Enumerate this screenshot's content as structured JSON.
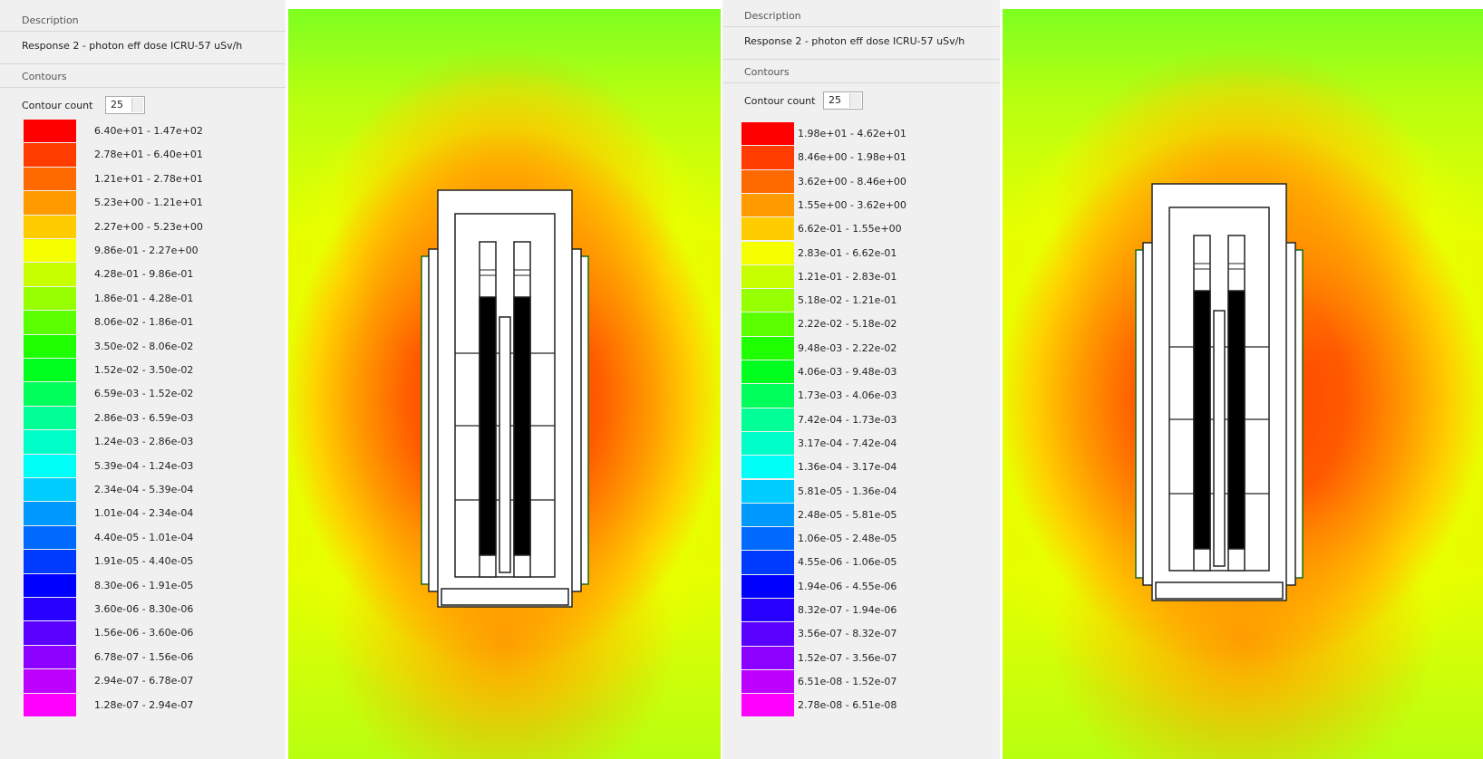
{
  "panels": [
    {
      "description_label": "Description",
      "description": "Response 2 - photon eff dose ICRU-57 uSv/h",
      "contours_label": "Contours",
      "contour_count_label": "Contour count",
      "contour_count": 25,
      "legend": [
        {
          "color": "#ff0000",
          "label": "6.40e+01 - 1.47e+02"
        },
        {
          "color": "#ff3c00",
          "label": "2.78e+01 - 6.40e+01"
        },
        {
          "color": "#ff6a00",
          "label": "1.21e+01 - 2.78e+01"
        },
        {
          "color": "#ff9a00",
          "label": "5.23e+00 - 1.21e+01"
        },
        {
          "color": "#ffcc00",
          "label": "2.27e+00 - 5.23e+00"
        },
        {
          "color": "#f6ff00",
          "label": "9.86e-01 - 2.27e+00"
        },
        {
          "color": "#c8ff00",
          "label": "4.28e-01 - 9.86e-01"
        },
        {
          "color": "#96ff00",
          "label": "1.86e-01 - 4.28e-01"
        },
        {
          "color": "#5aff00",
          "label": "8.06e-02 - 1.86e-01"
        },
        {
          "color": "#1eff00",
          "label": "3.50e-02 - 8.06e-02"
        },
        {
          "color": "#00ff1e",
          "label": "1.52e-02 - 3.50e-02"
        },
        {
          "color": "#00ff5a",
          "label": "6.59e-03 - 1.52e-02"
        },
        {
          "color": "#00ff96",
          "label": "2.86e-03 - 6.59e-03"
        },
        {
          "color": "#00ffc8",
          "label": "1.24e-03 - 2.86e-03"
        },
        {
          "color": "#00fff6",
          "label": "5.39e-04 - 1.24e-03"
        },
        {
          "color": "#00ccff",
          "label": "2.34e-04 - 5.39e-04"
        },
        {
          "color": "#009aff",
          "label": "1.01e-04 - 2.34e-04"
        },
        {
          "color": "#006aff",
          "label": "4.40e-05 - 1.01e-04"
        },
        {
          "color": "#003cff",
          "label": "1.91e-05 - 4.40e-05"
        },
        {
          "color": "#0000ff",
          "label": "8.30e-06 - 1.91e-05"
        },
        {
          "color": "#2800ff",
          "label": "3.60e-06 - 8.30e-06"
        },
        {
          "color": "#5a00ff",
          "label": "1.56e-06 - 3.60e-06"
        },
        {
          "color": "#8c00ff",
          "label": "6.78e-07 - 1.56e-06"
        },
        {
          "color": "#be00ff",
          "label": "2.94e-07 - 6.78e-07"
        },
        {
          "color": "#ff00ff",
          "label": "1.28e-07 - 2.94e-07"
        }
      ]
    },
    {
      "description_label": "Description",
      "description": "Response 2 - photon eff dose ICRU-57 uSv/h",
      "contours_label": "Contours",
      "contour_count_label": "Contour count",
      "contour_count": 25,
      "legend": [
        {
          "color": "#ff0000",
          "label": "1.98e+01 - 4.62e+01"
        },
        {
          "color": "#ff3c00",
          "label": "8.46e+00 - 1.98e+01"
        },
        {
          "color": "#ff6a00",
          "label": "3.62e+00 - 8.46e+00"
        },
        {
          "color": "#ff9a00",
          "label": "1.55e+00 - 3.62e+00"
        },
        {
          "color": "#ffcc00",
          "label": "6.62e-01 - 1.55e+00"
        },
        {
          "color": "#f6ff00",
          "label": "2.83e-01 - 6.62e-01"
        },
        {
          "color": "#c8ff00",
          "label": "1.21e-01 - 2.83e-01"
        },
        {
          "color": "#96ff00",
          "label": "5.18e-02 - 1.21e-01"
        },
        {
          "color": "#5aff00",
          "label": "2.22e-02 - 5.18e-02"
        },
        {
          "color": "#1eff00",
          "label": "9.48e-03 - 2.22e-02"
        },
        {
          "color": "#00ff1e",
          "label": "4.06e-03 - 9.48e-03"
        },
        {
          "color": "#00ff5a",
          "label": "1.73e-03 - 4.06e-03"
        },
        {
          "color": "#00ff96",
          "label": "7.42e-04 - 1.73e-03"
        },
        {
          "color": "#00ffc8",
          "label": "3.17e-04 - 7.42e-04"
        },
        {
          "color": "#00fff6",
          "label": "1.36e-04 - 3.17e-04"
        },
        {
          "color": "#00ccff",
          "label": "5.81e-05 - 1.36e-04"
        },
        {
          "color": "#009aff",
          "label": "2.48e-05 - 5.81e-05"
        },
        {
          "color": "#006aff",
          "label": "1.06e-05 - 2.48e-05"
        },
        {
          "color": "#003cff",
          "label": "4.55e-06 - 1.06e-05"
        },
        {
          "color": "#0000ff",
          "label": "1.94e-06 - 4.55e-06"
        },
        {
          "color": "#2800ff",
          "label": "8.32e-07 - 1.94e-06"
        },
        {
          "color": "#5a00ff",
          "label": "3.56e-07 - 8.32e-07"
        },
        {
          "color": "#8c00ff",
          "label": "1.52e-07 - 3.56e-07"
        },
        {
          "color": "#be00ff",
          "label": "6.51e-08 - 1.52e-07"
        },
        {
          "color": "#ff00ff",
          "label": "2.78e-08 - 6.51e-08"
        }
      ]
    }
  ]
}
